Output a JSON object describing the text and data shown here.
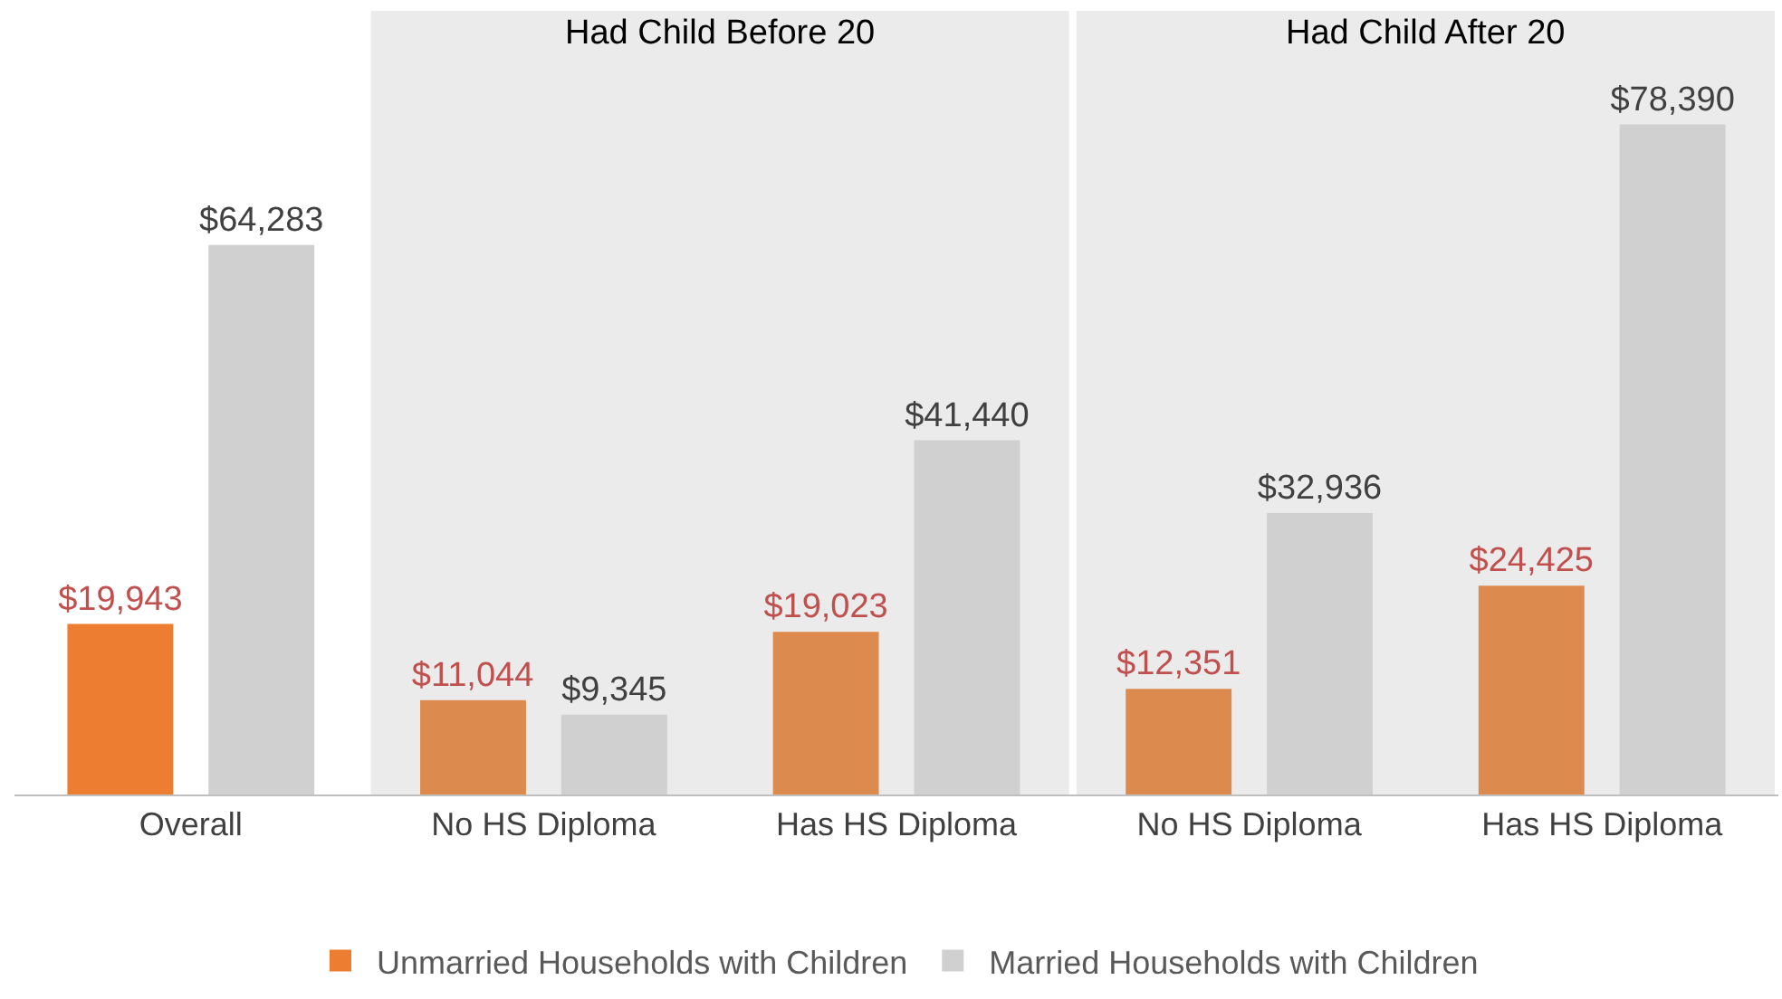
{
  "chart_data": {
    "type": "bar",
    "categories": [
      "Overall",
      "No HS Diploma",
      "Has HS Diploma",
      "No HS Diploma",
      "Has HS Diploma"
    ],
    "series": [
      {
        "name": "Unmarried Households with Children",
        "color": "#dd8a4f",
        "colors": [
          "#ed7d31",
          "#dd8a4f",
          "#dd8a4f",
          "#dd8a4f",
          "#dd8a4f"
        ],
        "values": [
          19943,
          11044,
          19023,
          12351,
          24425
        ],
        "value_labels": [
          "$19,943",
          "$11,044",
          "$19,023",
          "$12,351",
          "$24,425"
        ]
      },
      {
        "name": "Married Households with Children",
        "color": "#d0d0d0",
        "values": [
          64283,
          9345,
          41440,
          32936,
          78390
        ],
        "value_labels": [
          "$64,283",
          "$9,345",
          "$41,440",
          "$32,936",
          "$78,390"
        ]
      }
    ],
    "annotations": [
      "Had Child Before 20",
      "Had Child After 20"
    ],
    "legend": "bottom",
    "grid": false
  }
}
